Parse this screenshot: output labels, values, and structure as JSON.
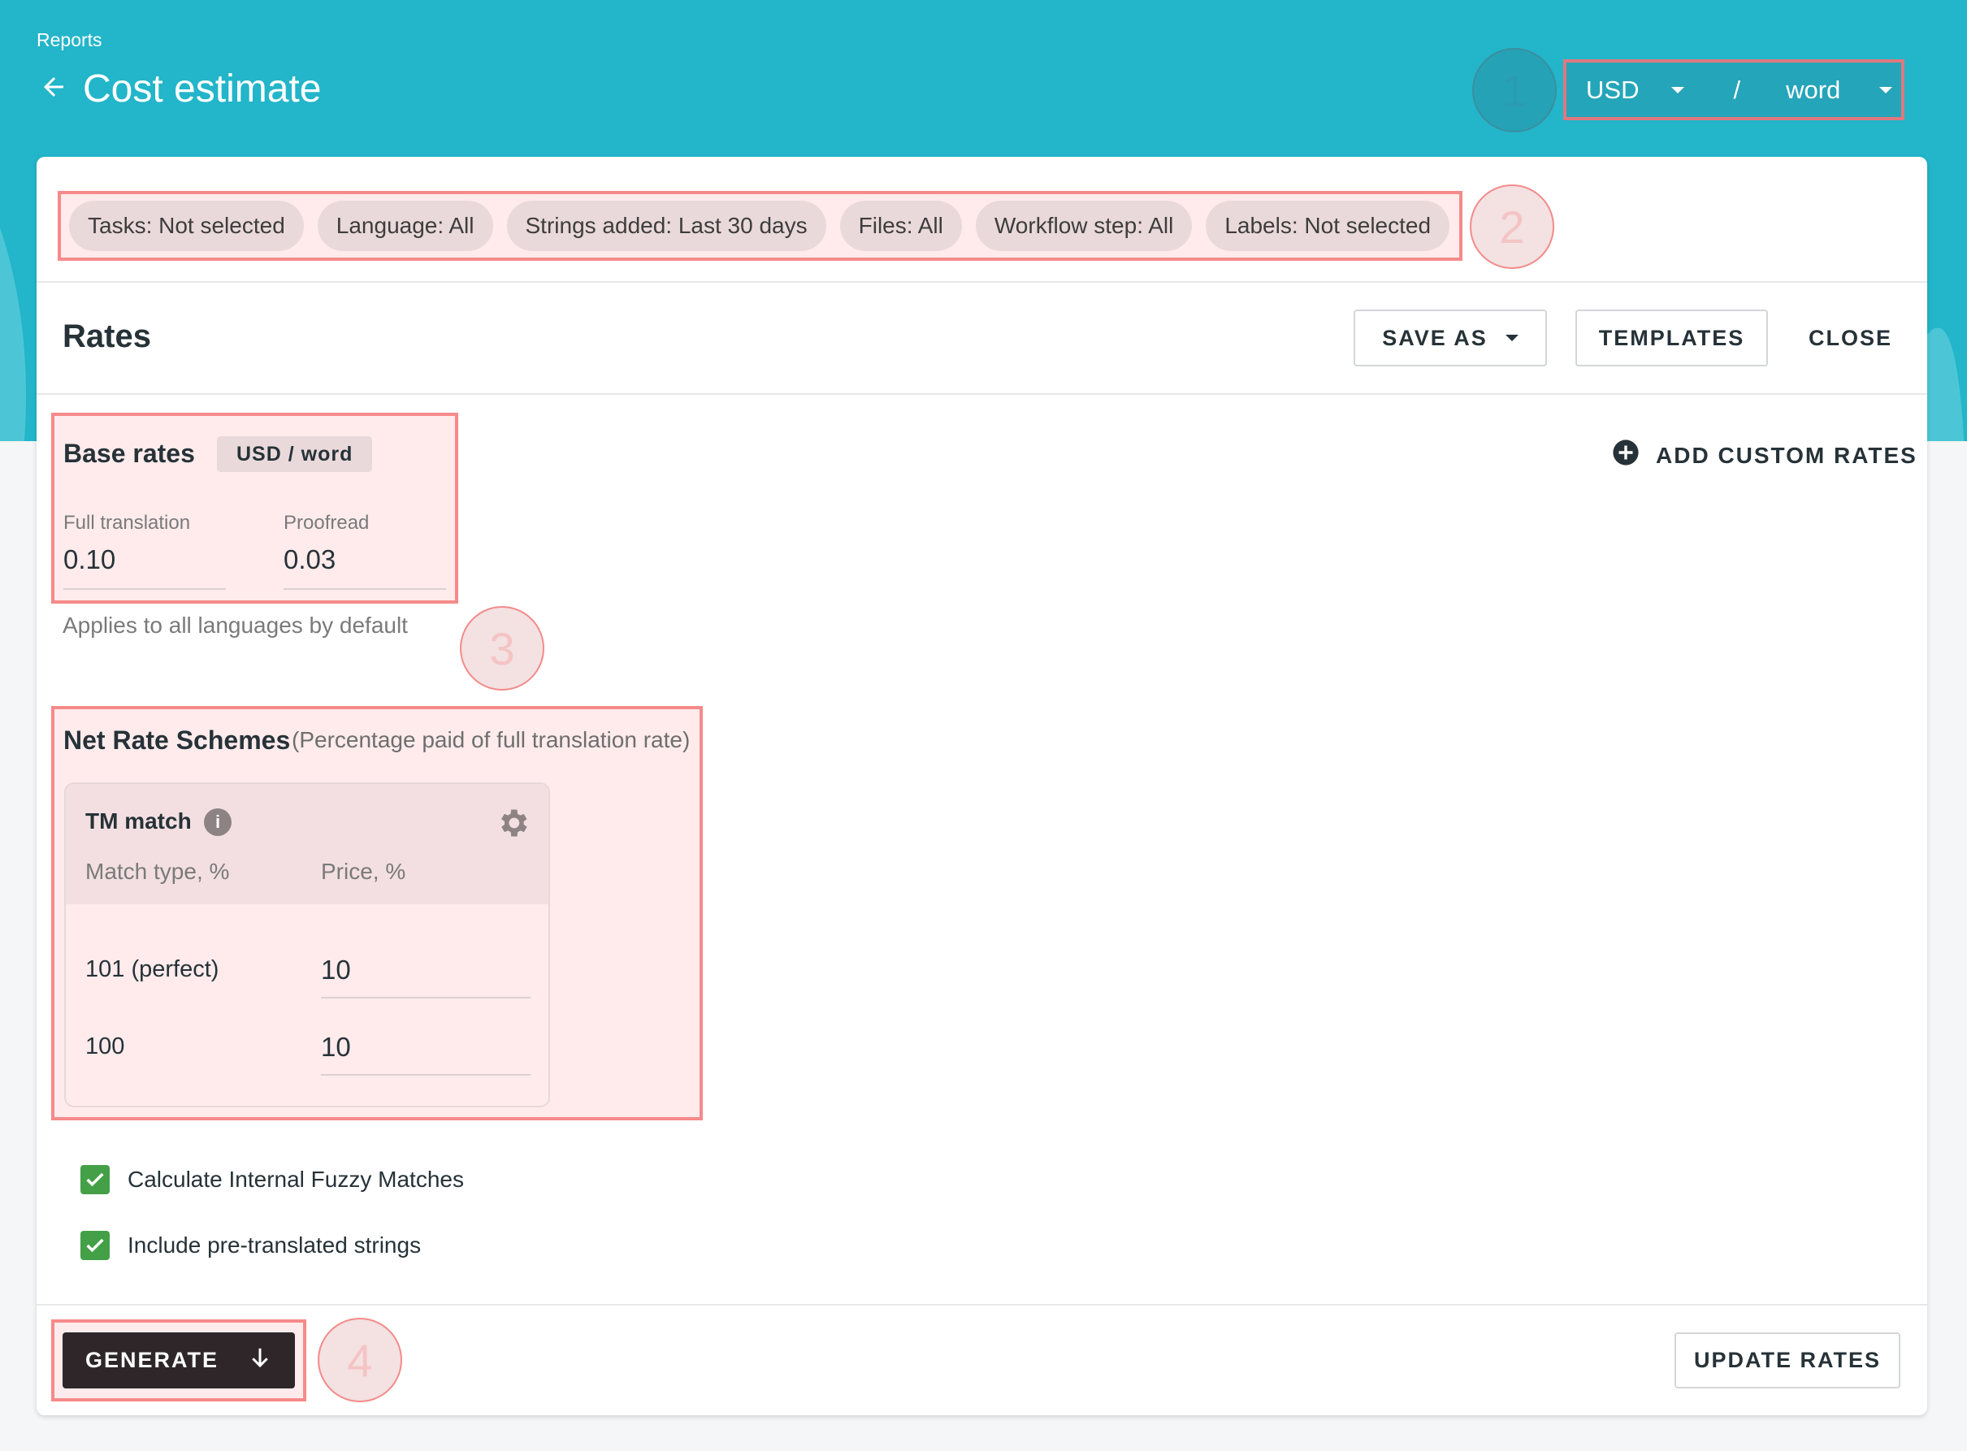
{
  "header": {
    "breadcrumb": "Reports",
    "title": "Cost estimate",
    "currency": "USD",
    "separator": "/",
    "unit": "word",
    "accent": "#23b5c9"
  },
  "annotations": [
    "1",
    "2",
    "3",
    "4"
  ],
  "filters": [
    "Tasks: Not selected",
    "Language: All",
    "Strings added: Last 30 days",
    "Files: All",
    "Workflow step: All",
    "Labels: Not selected"
  ],
  "rates": {
    "title": "Rates",
    "save_as": "SAVE AS",
    "templates": "TEMPLATES",
    "close": "CLOSE",
    "add_custom": "ADD CUSTOM RATES"
  },
  "base_rates": {
    "title": "Base rates",
    "unit_badge": "USD / word",
    "full_label": "Full translation",
    "full_value": "0.10",
    "proof_label": "Proofread",
    "proof_value": "0.03",
    "note": "Applies to all languages by default"
  },
  "net_rates": {
    "title": "Net Rate Schemes",
    "subtitle": "(Percentage paid of full translation rate)",
    "card_title": "TM match",
    "col_match": "Match type, %",
    "col_price": "Price, %",
    "rows": [
      {
        "match": "101 (perfect)",
        "price": "10"
      },
      {
        "match": "100",
        "price": "10"
      }
    ]
  },
  "options": [
    {
      "label": "Calculate Internal Fuzzy Matches",
      "checked": true
    },
    {
      "label": "Include pre-translated strings",
      "checked": true
    }
  ],
  "footer": {
    "generate": "GENERATE",
    "update_rates": "UPDATE RATES"
  }
}
